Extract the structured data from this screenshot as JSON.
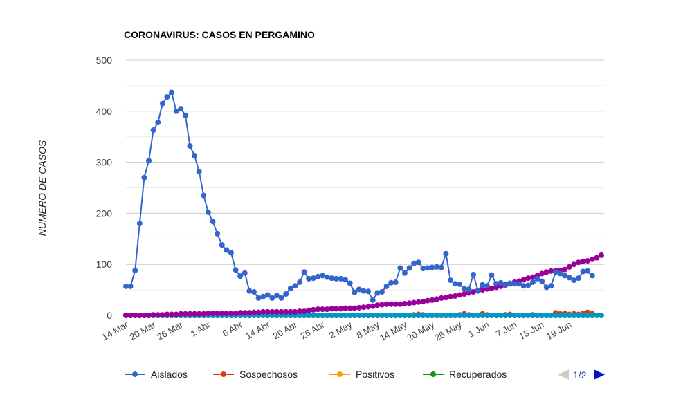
{
  "chart_data": {
    "type": "line",
    "title": "CORONAVIRUS: CASOS EN PERGAMINO",
    "ylabel": "NUMERO DE CASOS",
    "xlabel": "",
    "ylim": [
      0,
      500
    ],
    "yticks": [
      0,
      100,
      200,
      300,
      400,
      500
    ],
    "grid": true,
    "legend_position": "bottom",
    "x_start": "14 Mar",
    "x_tick_labels": [
      "14 Mar",
      "20 Mar",
      "26 Mar",
      "1 Abr",
      "8 Abr",
      "14 Abr",
      "20 Abr",
      "26 Abr",
      "2 May",
      "8 May",
      "14 May",
      "20 May",
      "26 May",
      "1 Jun",
      "7 Jun",
      "13 Jun",
      "19 Jun"
    ],
    "x_tick_index": [
      0,
      6,
      12,
      18,
      25,
      31,
      37,
      43,
      49,
      55,
      61,
      67,
      73,
      79,
      85,
      91,
      97
    ],
    "series": [
      {
        "name": "Aislados",
        "color": "#3366cc",
        "values": [
          57,
          57,
          88,
          180,
          270,
          303,
          363,
          378,
          415,
          428,
          437,
          400,
          405,
          392,
          332,
          313,
          282,
          235,
          202,
          184,
          160,
          138,
          128,
          123,
          89,
          77,
          83,
          48,
          46,
          34,
          37,
          40,
          34,
          39,
          34,
          42,
          53,
          58,
          65,
          85,
          72,
          73,
          76,
          78,
          75,
          73,
          72,
          72,
          70,
          63,
          45,
          51,
          48,
          47,
          30,
          44,
          46,
          57,
          64,
          65,
          93,
          83,
          93,
          102,
          104,
          92,
          93,
          94,
          95,
          94,
          121,
          69,
          62,
          61,
          53,
          51,
          80,
          49,
          60,
          58,
          79,
          62,
          64,
          59,
          63,
          62,
          62,
          58,
          59,
          65,
          72,
          67,
          55,
          58,
          85,
          82,
          78,
          74,
          69,
          73,
          86,
          87,
          78
        ]
      },
      {
        "name": "Sospechosos",
        "color": "#dc3912",
        "values": [
          0,
          0,
          0,
          0,
          0,
          0,
          0,
          0,
          0,
          0,
          0,
          0,
          0,
          0,
          0,
          0,
          0,
          0,
          0,
          0,
          0,
          0,
          0,
          0,
          0,
          0,
          0,
          0,
          0,
          0,
          0,
          0,
          0,
          0,
          0,
          0,
          0,
          0,
          0,
          0,
          0,
          0,
          0,
          0,
          0,
          0,
          0,
          0,
          0,
          0,
          0,
          0,
          0,
          0,
          0,
          0,
          0,
          0,
          0,
          0,
          0,
          0,
          0,
          1,
          2,
          1,
          0,
          0,
          0,
          0,
          0,
          0,
          0,
          1,
          3,
          1,
          0,
          0,
          3,
          1,
          0,
          0,
          0,
          1,
          2,
          0,
          0,
          0,
          0,
          1,
          0,
          0,
          0,
          0,
          5,
          3,
          4,
          2,
          3,
          2,
          4,
          6,
          3
        ]
      },
      {
        "name": "Positivos",
        "color": "#ff9900",
        "values": [
          0,
          0,
          0,
          0,
          0,
          0,
          0,
          0,
          0,
          0,
          0,
          0,
          0,
          0,
          0,
          0,
          0,
          0,
          0,
          0,
          0,
          0,
          0,
          0,
          0,
          0,
          0,
          0,
          0,
          0,
          0,
          0,
          0,
          0,
          0,
          0,
          0,
          0,
          0,
          0,
          0,
          0,
          0,
          0,
          0,
          0,
          0,
          0,
          0,
          0,
          0,
          0,
          0,
          0,
          0,
          0,
          0,
          0,
          0,
          0,
          0,
          0,
          0,
          0,
          0,
          0,
          0,
          0,
          0,
          0,
          0,
          0,
          0,
          0,
          0,
          0,
          0,
          0,
          0,
          0,
          0,
          0,
          0,
          0,
          0,
          0,
          0,
          0,
          0,
          0,
          0,
          0,
          0,
          0,
          1,
          1,
          2,
          1,
          2,
          1,
          2,
          3,
          4
        ]
      },
      {
        "name": "Recuperados",
        "color": "#109618",
        "values": [
          0,
          0,
          0,
          0,
          0,
          0,
          0,
          0,
          0,
          0,
          0,
          0,
          0,
          0,
          0,
          0,
          0,
          0,
          0,
          0,
          0,
          0,
          0,
          0,
          0,
          0,
          0,
          0,
          0,
          0,
          0,
          0,
          0,
          0,
          0,
          0,
          0,
          0,
          0,
          0,
          0,
          0,
          0,
          0,
          0,
          0,
          0,
          0,
          0,
          0,
          0,
          0,
          0,
          0,
          0,
          0,
          0,
          0,
          0,
          0,
          0,
          0,
          0,
          0,
          0,
          0,
          0,
          0,
          0,
          0,
          0,
          0,
          0,
          0,
          0,
          0,
          0,
          0,
          0,
          0,
          0,
          0,
          0,
          0,
          0,
          0,
          0,
          0,
          0,
          0,
          0,
          0,
          0,
          0,
          0,
          0,
          0,
          0,
          0,
          0,
          0,
          0,
          0
        ]
      },
      {
        "name": "",
        "color": "#990099",
        "values": [
          0,
          0,
          0,
          0,
          0,
          0,
          1,
          1,
          1,
          2,
          2,
          2,
          3,
          3,
          3,
          3,
          3,
          3,
          4,
          4,
          4,
          4,
          4,
          4,
          4,
          5,
          5,
          5,
          6,
          6,
          7,
          7,
          7,
          7,
          7,
          7,
          7,
          7,
          8,
          8,
          10,
          11,
          12,
          12,
          12,
          13,
          13,
          13,
          14,
          14,
          14,
          15,
          16,
          17,
          18,
          20,
          21,
          22,
          22,
          22,
          22,
          23,
          24,
          25,
          26,
          27,
          29,
          30,
          32,
          34,
          35,
          37,
          38,
          40,
          42,
          44,
          46,
          48,
          50,
          52,
          53,
          55,
          57,
          60,
          62,
          65,
          67,
          70,
          73,
          75,
          78,
          82,
          85,
          87,
          88,
          88,
          90,
          95,
          100,
          104,
          106,
          107,
          110,
          113,
          118
        ]
      },
      {
        "name": "",
        "color": "#0099c6",
        "values": [
          0,
          0,
          0,
          0,
          0,
          0,
          0,
          0,
          0,
          0,
          0,
          0,
          0,
          0,
          0,
          0,
          0,
          0,
          0,
          0,
          0,
          0,
          0,
          0,
          0,
          0,
          0,
          0,
          0,
          0,
          0,
          0,
          0,
          0,
          0,
          0,
          0,
          0,
          0,
          0,
          0,
          0,
          0,
          0,
          0,
          0,
          0,
          0,
          0,
          0,
          0,
          0,
          0,
          0,
          0,
          0,
          0,
          0,
          0,
          0,
          0,
          0,
          0,
          0,
          0,
          0,
          0,
          0,
          0,
          0,
          0,
          0,
          0,
          0,
          0,
          0,
          0,
          0,
          0,
          0,
          0,
          0,
          0,
          0,
          0,
          0,
          0,
          0,
          0,
          0,
          0,
          0,
          0,
          0,
          0,
          0,
          0,
          0,
          0,
          0,
          0,
          0,
          0,
          0,
          0
        ]
      }
    ],
    "legend_visible": [
      "Aislados",
      "Sospechosos",
      "Positivos",
      "Recuperados"
    ]
  },
  "legend": {
    "items": [
      {
        "label": "Aislados",
        "color": "#3366cc"
      },
      {
        "label": "Sospechosos",
        "color": "#dc3912"
      },
      {
        "label": "Positivos",
        "color": "#ff9900"
      },
      {
        "label": "Recuperados",
        "color": "#109618"
      }
    ],
    "page_indicator": "1/2",
    "prev_icon": "triangle-left-icon",
    "next_icon": "triangle-right-icon",
    "prev_color": "#cccccc",
    "next_color": "#0011cc"
  }
}
